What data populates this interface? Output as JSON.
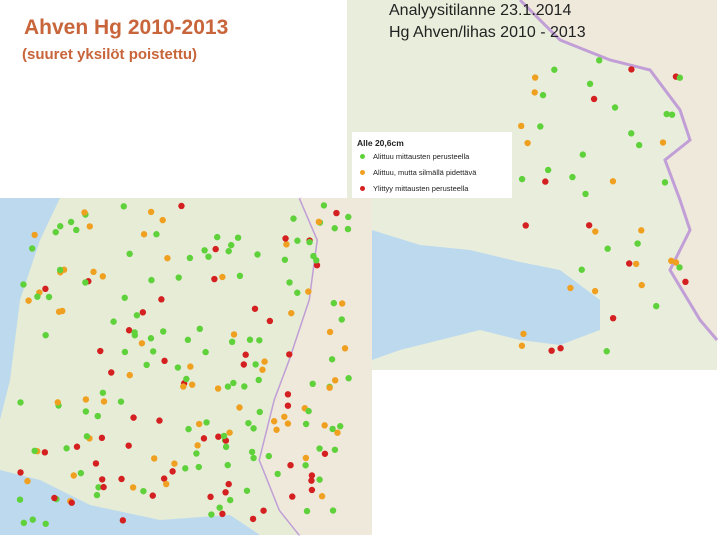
{
  "header": {
    "title": "Ahven Hg 2010-2013",
    "subtitle": "(suuret yksilöt poistettu)"
  },
  "right_map": {
    "title": "Analyysitilanne 23.1.2014",
    "subtitle": "Hg Ahven/lihas 2010 -  2013",
    "legend": {
      "title": "Alle 20,6cm",
      "items": [
        "Alittuu mittausten perusteella",
        "Alittuu, mutta silmällä pidettävä",
        "Ylittyy mittausten perusteella"
      ]
    }
  }
}
